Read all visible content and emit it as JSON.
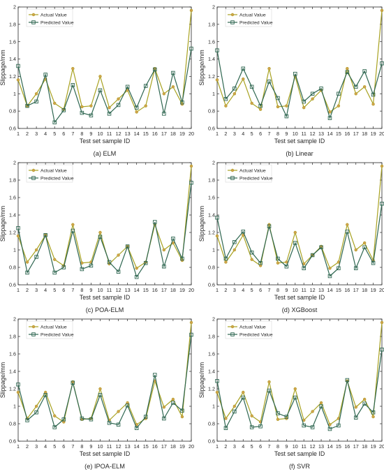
{
  "colors": {
    "actual": "#A8A221",
    "actual_marker": "#D4A04E",
    "predicted": "#2E6650",
    "predicted_marker_edge": "#2E6650"
  },
  "chart_data": [
    {
      "type": "line",
      "caption": "(a) ELM",
      "xlabel": "Test set sample ID",
      "ylabel": "Slippage/mm",
      "x": [
        1,
        2,
        3,
        4,
        5,
        6,
        7,
        8,
        9,
        10,
        11,
        12,
        13,
        14,
        15,
        16,
        17,
        18,
        19,
        20
      ],
      "xlim": [
        1,
        20
      ],
      "ylim": [
        0.6,
        2.0
      ],
      "yticks": [
        "0.6",
        "0.8",
        "1",
        "1.2",
        "1.4",
        "1.6",
        "1.8",
        "2"
      ],
      "legend": "top-left",
      "series": [
        {
          "name": "Actual Value",
          "values": [
            1.16,
            0.86,
            1.0,
            1.17,
            0.89,
            0.82,
            1.29,
            0.85,
            0.86,
            1.2,
            0.84,
            0.94,
            1.04,
            0.79,
            0.86,
            1.29,
            1.0,
            1.08,
            0.88,
            1.96
          ]
        },
        {
          "name": "Predicted Value",
          "values": [
            1.32,
            0.86,
            0.91,
            1.22,
            0.67,
            0.81,
            1.1,
            0.78,
            0.75,
            1.04,
            0.77,
            0.87,
            1.08,
            0.84,
            1.09,
            1.28,
            0.77,
            1.24,
            0.9,
            1.52
          ]
        }
      ]
    },
    {
      "type": "line",
      "caption": "(b) Linear",
      "xlabel": "Test set sample ID",
      "ylabel": "Slippage/mm",
      "x": [
        1,
        2,
        3,
        4,
        5,
        6,
        7,
        8,
        9,
        10,
        11,
        12,
        13,
        14,
        15,
        16,
        17,
        18,
        19,
        20
      ],
      "xlim": [
        1,
        20
      ],
      "ylim": [
        0.6,
        2.0
      ],
      "yticks": [
        "0.6",
        "0.8",
        "1",
        "1.2",
        "1.4",
        "1.6",
        "1.8",
        "2"
      ],
      "legend": "top-left",
      "series": [
        {
          "name": "Actual Value",
          "values": [
            1.16,
            0.86,
            1.0,
            1.17,
            0.89,
            0.82,
            1.29,
            0.85,
            0.86,
            1.2,
            0.84,
            0.94,
            1.04,
            0.79,
            0.86,
            1.29,
            1.0,
            1.08,
            0.88,
            1.96
          ]
        },
        {
          "name": "Predicted Value",
          "values": [
            1.5,
            0.94,
            1.06,
            1.29,
            1.08,
            0.86,
            1.14,
            0.95,
            0.74,
            1.23,
            0.91,
            1.0,
            1.06,
            0.72,
            1.0,
            1.25,
            1.08,
            1.26,
            0.99,
            1.35
          ]
        }
      ]
    },
    {
      "type": "line",
      "caption": "(c) POA-ELM",
      "xlabel": "Test set sample ID",
      "ylabel": "Slippage/mm",
      "x": [
        1,
        2,
        3,
        4,
        5,
        6,
        7,
        8,
        9,
        10,
        11,
        12,
        13,
        14,
        15,
        16,
        17,
        18,
        19,
        20
      ],
      "xlim": [
        1,
        20
      ],
      "ylim": [
        0.6,
        2.0
      ],
      "yticks": [
        "0.6",
        "0.8",
        "1",
        "1.2",
        "1.4",
        "1.6",
        "1.8",
        "2"
      ],
      "legend": "top-left",
      "series": [
        {
          "name": "Actual Value",
          "values": [
            1.16,
            0.86,
            1.0,
            1.17,
            0.89,
            0.82,
            1.29,
            0.85,
            0.86,
            1.2,
            0.84,
            0.94,
            1.04,
            0.79,
            0.86,
            1.29,
            1.0,
            1.08,
            0.88,
            1.96
          ]
        },
        {
          "name": "Predicted Value",
          "values": [
            1.25,
            0.74,
            0.92,
            1.17,
            0.74,
            0.8,
            1.22,
            0.78,
            0.82,
            1.15,
            0.86,
            0.75,
            1.04,
            0.69,
            0.85,
            1.32,
            0.81,
            1.13,
            0.9,
            1.77
          ]
        }
      ]
    },
    {
      "type": "line",
      "caption": "(d) XGBoost",
      "xlabel": "Test set sample ID",
      "ylabel": "Slippage/mm",
      "x": [
        1,
        2,
        3,
        4,
        5,
        6,
        7,
        8,
        9,
        10,
        11,
        12,
        13,
        14,
        15,
        16,
        17,
        18,
        19,
        20
      ],
      "xlim": [
        1,
        20
      ],
      "ylim": [
        0.6,
        2.0
      ],
      "yticks": [
        "0.6",
        "0.8",
        "1",
        "1.2",
        "1.4",
        "1.6",
        "1.8",
        "2"
      ],
      "legend": "top-left",
      "series": [
        {
          "name": "Actual Value",
          "values": [
            1.16,
            0.86,
            1.0,
            1.17,
            0.89,
            0.82,
            1.29,
            0.85,
            0.86,
            1.2,
            0.84,
            0.94,
            1.04,
            0.79,
            0.86,
            1.29,
            1.0,
            1.08,
            0.88,
            1.96
          ]
        },
        {
          "name": "Predicted Value",
          "values": [
            1.37,
            0.9,
            1.09,
            1.21,
            0.97,
            0.85,
            1.27,
            0.9,
            0.81,
            1.08,
            0.79,
            0.94,
            1.03,
            0.7,
            0.79,
            1.21,
            0.79,
            1.03,
            0.85,
            1.53
          ]
        }
      ]
    },
    {
      "type": "line",
      "caption": "(e) IPOA-ELM",
      "xlabel": "Test set sample ID",
      "ylabel": "Slippage/mm",
      "x": [
        1,
        2,
        3,
        4,
        5,
        6,
        7,
        8,
        9,
        10,
        11,
        12,
        13,
        14,
        15,
        16,
        17,
        18,
        19,
        20
      ],
      "xlim": [
        1,
        20
      ],
      "ylim": [
        0.6,
        2.0
      ],
      "yticks": [
        "0.6",
        "0.8",
        "1",
        "1.2",
        "1.4",
        "1.6",
        "1.8",
        "2"
      ],
      "legend": "top-left",
      "series": [
        {
          "name": "Actual Value",
          "values": [
            1.16,
            0.86,
            1.0,
            1.16,
            0.89,
            0.82,
            1.28,
            0.85,
            0.86,
            1.2,
            0.84,
            0.94,
            1.04,
            0.79,
            0.86,
            1.29,
            0.99,
            1.08,
            0.88,
            1.96
          ]
        },
        {
          "name": "Predicted Value",
          "values": [
            1.25,
            0.84,
            0.93,
            1.13,
            0.76,
            0.85,
            1.27,
            0.86,
            0.85,
            1.13,
            0.81,
            0.79,
            1.01,
            0.75,
            0.88,
            1.36,
            0.86,
            1.04,
            0.95,
            1.82
          ]
        }
      ]
    },
    {
      "type": "line",
      "caption": "(f) SVR",
      "xlabel": "Test set sample ID",
      "ylabel": "Slippage/mm",
      "x": [
        1,
        2,
        3,
        4,
        5,
        6,
        7,
        8,
        9,
        10,
        11,
        12,
        13,
        14,
        15,
        16,
        17,
        18,
        19,
        20
      ],
      "xlim": [
        1,
        20
      ],
      "ylim": [
        0.6,
        2.0
      ],
      "yticks": [
        "0.6",
        "0.8",
        "1",
        "1.2",
        "1.4",
        "1.6",
        "1.8",
        "2"
      ],
      "legend": "top-left",
      "series": [
        {
          "name": "Actual Value",
          "values": [
            1.16,
            0.86,
            1.0,
            1.16,
            0.89,
            0.82,
            1.28,
            0.85,
            0.86,
            1.2,
            0.84,
            0.94,
            1.04,
            0.79,
            0.86,
            1.29,
            0.99,
            1.08,
            0.88,
            1.96
          ]
        },
        {
          "name": "Predicted Value",
          "values": [
            1.29,
            0.75,
            0.94,
            1.1,
            0.76,
            0.77,
            1.18,
            0.92,
            0.88,
            1.1,
            0.78,
            0.76,
            1.0,
            0.74,
            0.78,
            1.3,
            0.87,
            1.03,
            0.93,
            1.65
          ]
        }
      ]
    }
  ]
}
